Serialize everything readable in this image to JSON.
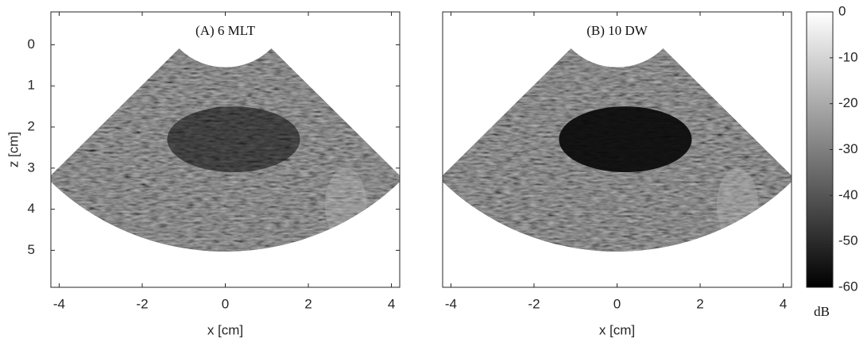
{
  "chart_data": [
    {
      "type": "image",
      "title": "(A) 6 MLT",
      "xlabel": "x [cm]",
      "ylabel": "z [cm]",
      "xlim": [
        -4.2,
        4.2
      ],
      "ylim": [
        -0.8,
        5.9
      ],
      "xticks": [
        -4,
        -2,
        0,
        2,
        4
      ],
      "yticks": [
        0,
        1,
        2,
        3,
        4,
        5
      ]
    },
    {
      "type": "image",
      "title": "(B) 10 DW",
      "xlabel": "x [cm]",
      "xlim": [
        -4.2,
        4.2
      ],
      "ylim": [
        -0.8,
        5.9
      ],
      "xticks": [
        -4,
        -2,
        0,
        2,
        4
      ]
    },
    {
      "type": "colorbar",
      "label": "dB",
      "ylim": [
        -60,
        0
      ],
      "yticks": [
        0,
        -10,
        -20,
        -30,
        -40,
        -50,
        -60
      ]
    }
  ]
}
